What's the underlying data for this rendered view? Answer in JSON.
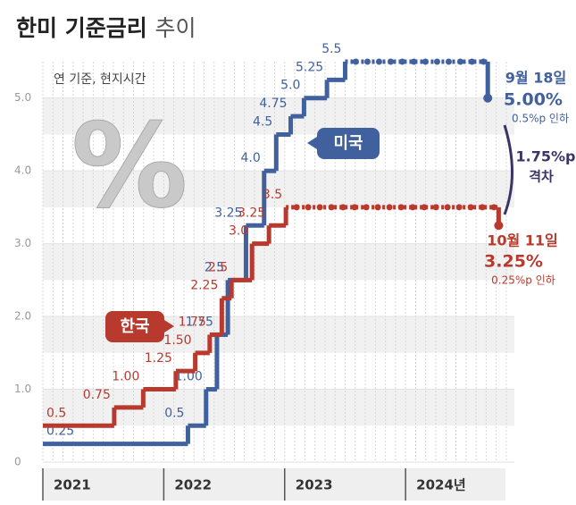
{
  "chart_data": {
    "type": "step",
    "title": "한미 기준금리",
    "title_suffix": "추이",
    "subtitle": "연 기준, 현지시간",
    "symbol": "%",
    "xlim": [
      2021,
      2024.9
    ],
    "xticks": [
      2021,
      2022,
      2023,
      {
        "value": 2024,
        "label": "2024년"
      }
    ],
    "ylim": [
      0,
      5.5
    ],
    "yticks": [
      0,
      {
        "value": 1,
        "label": "1.0"
      },
      {
        "value": 2,
        "label": "2.0"
      },
      {
        "value": 3,
        "label": "3.0"
      },
      {
        "value": 4,
        "label": "4.0"
      },
      {
        "value": 5,
        "label": "5.0"
      }
    ],
    "series": [
      {
        "name": "미국",
        "color": "#41609e",
        "x": [
          2021,
          2022.2,
          2022.35,
          2022.44,
          2022.53,
          2022.68,
          2022.83,
          2022.93,
          2023.05,
          2023.16,
          2023.35,
          2023.5,
          2024.68
        ],
        "values": [
          0.25,
          0.5,
          1,
          1.75,
          2.5,
          3.25,
          4,
          4.5,
          4.75,
          5,
          5.25,
          5.5,
          5
        ],
        "value_labels": [
          "0.25",
          "0.5",
          "1.00",
          "1.75",
          "2.5",
          "3.25",
          "4.0",
          "4.5",
          "4.75",
          "5.0",
          "5.25",
          "5.5",
          "5.00%"
        ]
      },
      {
        "name": "한국",
        "color": "#b83a2e",
        "x": [
          2021,
          2021.59,
          2021.83,
          2022.1,
          2022.26,
          2022.38,
          2022.48,
          2022.56,
          2022.73,
          2022.87,
          2023.01,
          2024.77
        ],
        "values": [
          0.5,
          0.75,
          1,
          1.25,
          1.5,
          1.75,
          2.25,
          2.5,
          3,
          3.25,
          3.5,
          3.25
        ],
        "value_labels": [
          "0.5",
          "0.75",
          "1.00",
          "1.25",
          "1.50",
          "1.75",
          "2.25",
          "2.5",
          "3.0",
          "3.25",
          "3.5",
          "3.25%"
        ]
      }
    ],
    "annotations": {
      "us_date": "9월 18일",
      "us_change": "0.5%p 인하",
      "kr_date": "10월 11일",
      "kr_change": "0.25%p 인하",
      "gap": "1.75%p",
      "gap_label": "격차"
    }
  }
}
